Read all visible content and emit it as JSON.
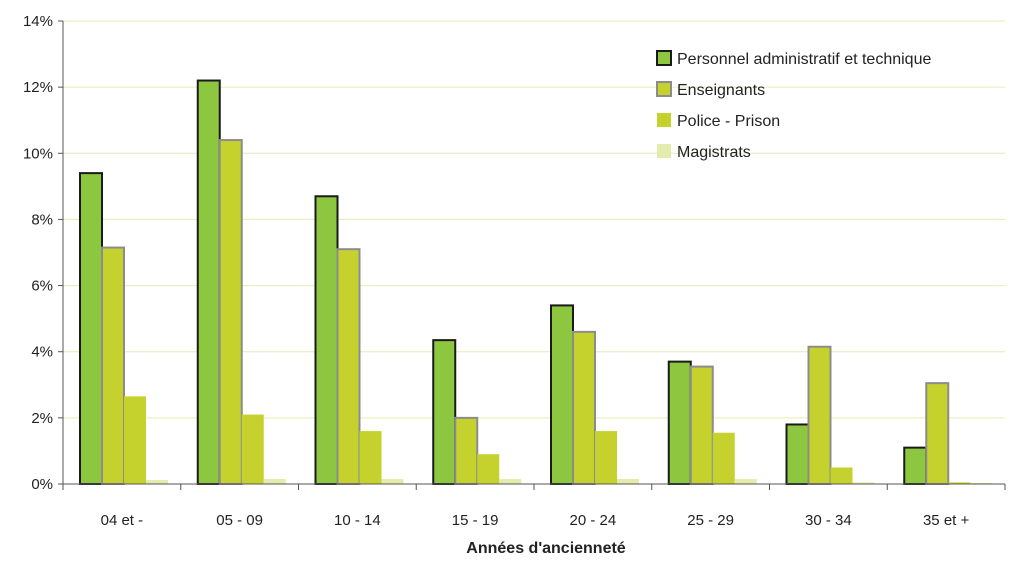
{
  "chart_data": {
    "type": "bar",
    "xlabel": "Années d'ancienneté",
    "ylabel": "",
    "ylim": [
      0,
      14
    ],
    "yticks": [
      "0%",
      "2%",
      "4%",
      "6%",
      "8%",
      "10%",
      "12%",
      "14%"
    ],
    "grid": true,
    "legend_position": "top-right",
    "categories": [
      "04 et -",
      "05 - 09",
      "10 - 14",
      "15 - 19",
      "20 - 24",
      "25 - 29",
      "30 - 34",
      "35 et +"
    ],
    "series": [
      {
        "name": "Personnel administratif et technique",
        "color": "#8dc63f",
        "outline": "#1a1a1a",
        "values": [
          9.4,
          12.2,
          8.7,
          4.35,
          5.4,
          3.7,
          1.8,
          1.1
        ]
      },
      {
        "name": "Enseignants",
        "color": "#c5d22e",
        "outline": "#8c8c8c",
        "values": [
          7.15,
          10.4,
          7.1,
          2.0,
          4.6,
          3.55,
          4.15,
          3.05
        ]
      },
      {
        "name": "Police - Prison",
        "color": "#c5d22e",
        "outline": "none",
        "values": [
          2.65,
          2.1,
          1.6,
          0.9,
          1.6,
          1.55,
          0.5,
          0.05
        ]
      },
      {
        "name": "Magistrats",
        "color": "#e3ebad",
        "outline": "none",
        "values": [
          0.12,
          0.15,
          0.15,
          0.15,
          0.15,
          0.15,
          0.05,
          0.03
        ]
      }
    ]
  }
}
